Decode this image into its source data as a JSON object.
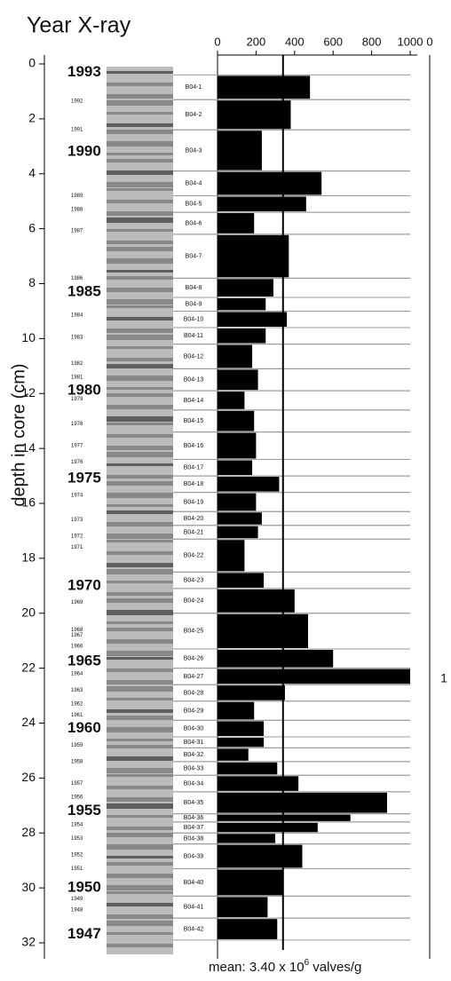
{
  "chart_data": {
    "type": "hbar-depth",
    "title": "Year  X-ray",
    "y_label": "depth in core (cm)",
    "ylim": [
      0,
      32
    ],
    "yticks": [
      0,
      2,
      4,
      6,
      8,
      10,
      12,
      14,
      16,
      18,
      20,
      22,
      24,
      26,
      28,
      30,
      32
    ],
    "xlim": [
      0,
      1000
    ],
    "xticks": [
      0,
      200,
      400,
      600,
      800,
      1000
    ],
    "color": "#000000",
    "mean": 340,
    "mean_text": "mean: 3.40 x 10",
    "mean_exp": "6",
    "mean_unit": " valves/g",
    "panel2_top": "0",
    "panel2_side": "1",
    "samples": [
      "B04-1",
      "B04-2",
      "B04-3",
      "B04-4",
      "B04-5",
      "B04-6",
      "B04-7",
      "B04-8",
      "B04-9",
      "B04-10",
      "B04-11",
      "B04-12",
      "B04-13",
      "B04-14",
      "B04-15",
      "B04-16",
      "B04-17",
      "B04-18",
      "B04-19",
      "B04-20",
      "B04-21",
      "B04-22",
      "B04-23",
      "B04-24",
      "B04-25",
      "B04-26",
      "B04-27",
      "B04-28",
      "B04-29",
      "B04-30",
      "B04-31",
      "B04-32",
      "B04-33",
      "B04-34",
      "B04-35",
      "B04-36",
      "B04-37",
      "B04-38",
      "B04-39",
      "B04-40",
      "B04-41",
      "B04-42"
    ],
    "depth_top": [
      0.4,
      1.3,
      2.4,
      3.9,
      4.8,
      5.4,
      6.2,
      7.8,
      8.5,
      9.0,
      9.6,
      10.2,
      11.1,
      11.9,
      12.6,
      13.4,
      14.4,
      15.0,
      15.6,
      16.3,
      16.8,
      17.3,
      18.5,
      19.1,
      20.0,
      21.3,
      22.0,
      22.6,
      23.2,
      23.9,
      24.5,
      24.9,
      25.4,
      25.9,
      26.5,
      27.3,
      27.6,
      28.0,
      28.4,
      29.3,
      30.3,
      31.1
    ],
    "depth_bottom": [
      1.3,
      2.4,
      3.9,
      4.8,
      5.4,
      6.2,
      7.8,
      8.5,
      9.0,
      9.6,
      10.2,
      11.1,
      11.9,
      12.6,
      13.4,
      14.4,
      15.0,
      15.6,
      16.3,
      16.8,
      17.3,
      18.5,
      19.1,
      20.0,
      21.3,
      22.0,
      22.6,
      23.2,
      23.9,
      24.5,
      24.9,
      25.4,
      25.9,
      26.5,
      27.3,
      27.6,
      28.0,
      28.4,
      29.3,
      30.3,
      31.1,
      31.9
    ],
    "values": [
      480,
      380,
      230,
      540,
      460,
      190,
      370,
      290,
      250,
      360,
      250,
      180,
      210,
      140,
      190,
      200,
      180,
      320,
      200,
      230,
      210,
      140,
      240,
      400,
      470,
      600,
      1000,
      350,
      190,
      240,
      240,
      160,
      310,
      420,
      880,
      690,
      520,
      300,
      440,
      340,
      260,
      310
    ],
    "major_years": [
      "1993",
      "1990",
      "1985",
      "1980",
      "1975",
      "1970",
      "1965",
      "1960",
      "1955",
      "1950",
      "1947"
    ],
    "major_depths": [
      0.3,
      3.2,
      8.3,
      11.9,
      15.1,
      19.0,
      21.75,
      24.2,
      27.2,
      30.0,
      31.7
    ],
    "minor_years": [
      "1992",
      "1991",
      "1989",
      "1988",
      "1987",
      "1986",
      "1984",
      "1983",
      "1982",
      "1981",
      "1979",
      "1978",
      "1977",
      "1976",
      "1974",
      "1973",
      "1972",
      "1971",
      "1969",
      "1968",
      "1967",
      "1966",
      "1964",
      "1963",
      "1962",
      "1961",
      "1959",
      "1958",
      "1957",
      "1956",
      "1954",
      "1953",
      "1952",
      "1951",
      "1949",
      "1948"
    ],
    "minor_depths": [
      1.36,
      2.39,
      4.8,
      5.3,
      6.08,
      7.8,
      9.15,
      9.95,
      10.9,
      11.4,
      12.2,
      13.1,
      13.9,
      14.5,
      15.7,
      16.6,
      17.2,
      17.6,
      19.6,
      20.6,
      20.8,
      21.2,
      22.2,
      22.8,
      23.3,
      23.7,
      24.8,
      25.4,
      26.2,
      26.7,
      27.7,
      28.2,
      28.8,
      29.3,
      30.4,
      30.8
    ]
  }
}
